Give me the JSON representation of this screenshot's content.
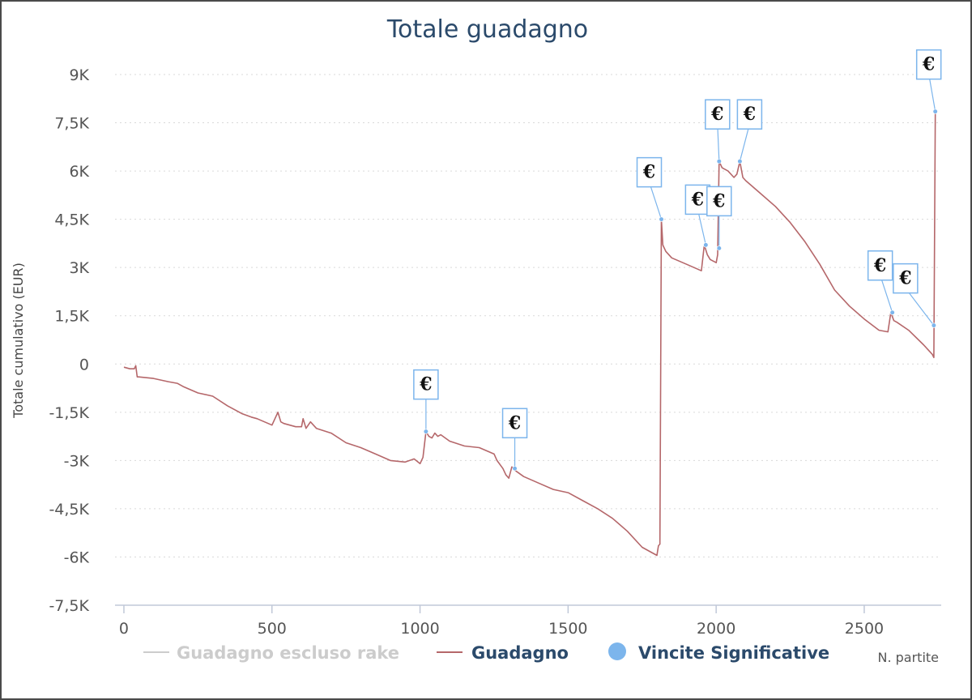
{
  "chart_data": {
    "type": "line",
    "title": "Totale guadagno",
    "xlabel": "N. partite",
    "ylabel": "Totale cumulativo (EUR)",
    "xlim": [
      -30,
      2760
    ],
    "ylim": [
      -7500,
      9000
    ],
    "x_ticks": [
      0,
      500,
      1000,
      1500,
      2000,
      2500
    ],
    "x_tick_labels": [
      "0",
      "500",
      "1000",
      "1500",
      "2000",
      "2500"
    ],
    "y_ticks": [
      9000,
      7500,
      6000,
      4500,
      3000,
      1500,
      0,
      -1500,
      -3000,
      -4500,
      -6000,
      -7500
    ],
    "y_tick_labels": [
      "9K",
      "7,5K",
      "6K",
      "4,5K",
      "3K",
      "1,5K",
      "0",
      "-1,5K",
      "-3K",
      "-4,5K",
      "-6K",
      "-7,5K"
    ],
    "grid": "horizontal dotted",
    "legend_position": "bottom",
    "series": [
      {
        "name": "Guadagno escluso rake",
        "color": "#cccccc",
        "hidden": true,
        "x": [],
        "y": []
      },
      {
        "name": "Guadagno",
        "color": "#b5676a",
        "x": [
          0,
          20,
          35,
          40,
          45,
          50,
          100,
          150,
          180,
          200,
          250,
          300,
          350,
          400,
          430,
          450,
          500,
          520,
          530,
          540,
          560,
          580,
          600,
          605,
          615,
          630,
          650,
          700,
          750,
          800,
          850,
          900,
          950,
          980,
          1000,
          1010,
          1020,
          1030,
          1040,
          1050,
          1060,
          1070,
          1100,
          1150,
          1200,
          1250,
          1260,
          1280,
          1290,
          1300,
          1310,
          1320,
          1350,
          1400,
          1450,
          1500,
          1550,
          1600,
          1650,
          1700,
          1750,
          1780,
          1800,
          1805,
          1810,
          1815,
          1820,
          1830,
          1850,
          1900,
          1950,
          1960,
          1970,
          1980,
          2000,
          2005,
          2010,
          2020,
          2040,
          2060,
          2070,
          2080,
          2090,
          2100,
          2150,
          2200,
          2250,
          2300,
          2350,
          2400,
          2450,
          2500,
          2550,
          2580,
          2590,
          2600,
          2610,
          2650,
          2700,
          2720,
          2730,
          2735,
          2740
        ],
        "y": [
          -100,
          -150,
          -150,
          -50,
          -400,
          -400,
          -450,
          -550,
          -600,
          -700,
          -900,
          -1000,
          -1300,
          -1550,
          -1650,
          -1700,
          -1900,
          -1500,
          -1800,
          -1850,
          -1900,
          -1950,
          -1950,
          -1700,
          -2000,
          -1800,
          -2000,
          -2150,
          -2450,
          -2600,
          -2800,
          -3000,
          -3050,
          -2950,
          -3100,
          -2900,
          -2100,
          -2250,
          -2300,
          -2150,
          -2250,
          -2200,
          -2400,
          -2550,
          -2600,
          -2800,
          -3000,
          -3250,
          -3450,
          -3550,
          -3200,
          -3300,
          -3500,
          -3700,
          -3900,
          -4000,
          -4250,
          -4500,
          -4800,
          -5200,
          -5700,
          -5850,
          -5950,
          -5650,
          -5600,
          4500,
          3700,
          3500,
          3300,
          3100,
          2900,
          3700,
          3400,
          3250,
          3150,
          3400,
          6300,
          6100,
          6000,
          5800,
          5900,
          6300,
          5800,
          5700,
          5300,
          4900,
          4400,
          3800,
          3100,
          2300,
          1800,
          1400,
          1050,
          1000,
          1600,
          1350,
          1300,
          1050,
          600,
          400,
          300,
          200,
          7850
        ]
      }
    ],
    "markers": {
      "name": "Vincite Significative",
      "color": "#7cb5ec",
      "symbol": "€",
      "points": [
        {
          "x": 1020,
          "y": -2100
        },
        {
          "x": 1320,
          "y": -3250
        },
        {
          "x": 1815,
          "y": 4500
        },
        {
          "x": 1965,
          "y": 3700
        },
        {
          "x": 2010,
          "y": 3600
        },
        {
          "x": 2010,
          "y": 6300
        },
        {
          "x": 2080,
          "y": 6300
        },
        {
          "x": 2595,
          "y": 1600
        },
        {
          "x": 2735,
          "y": 1200
        },
        {
          "x": 2740,
          "y": 7850
        }
      ]
    }
  }
}
